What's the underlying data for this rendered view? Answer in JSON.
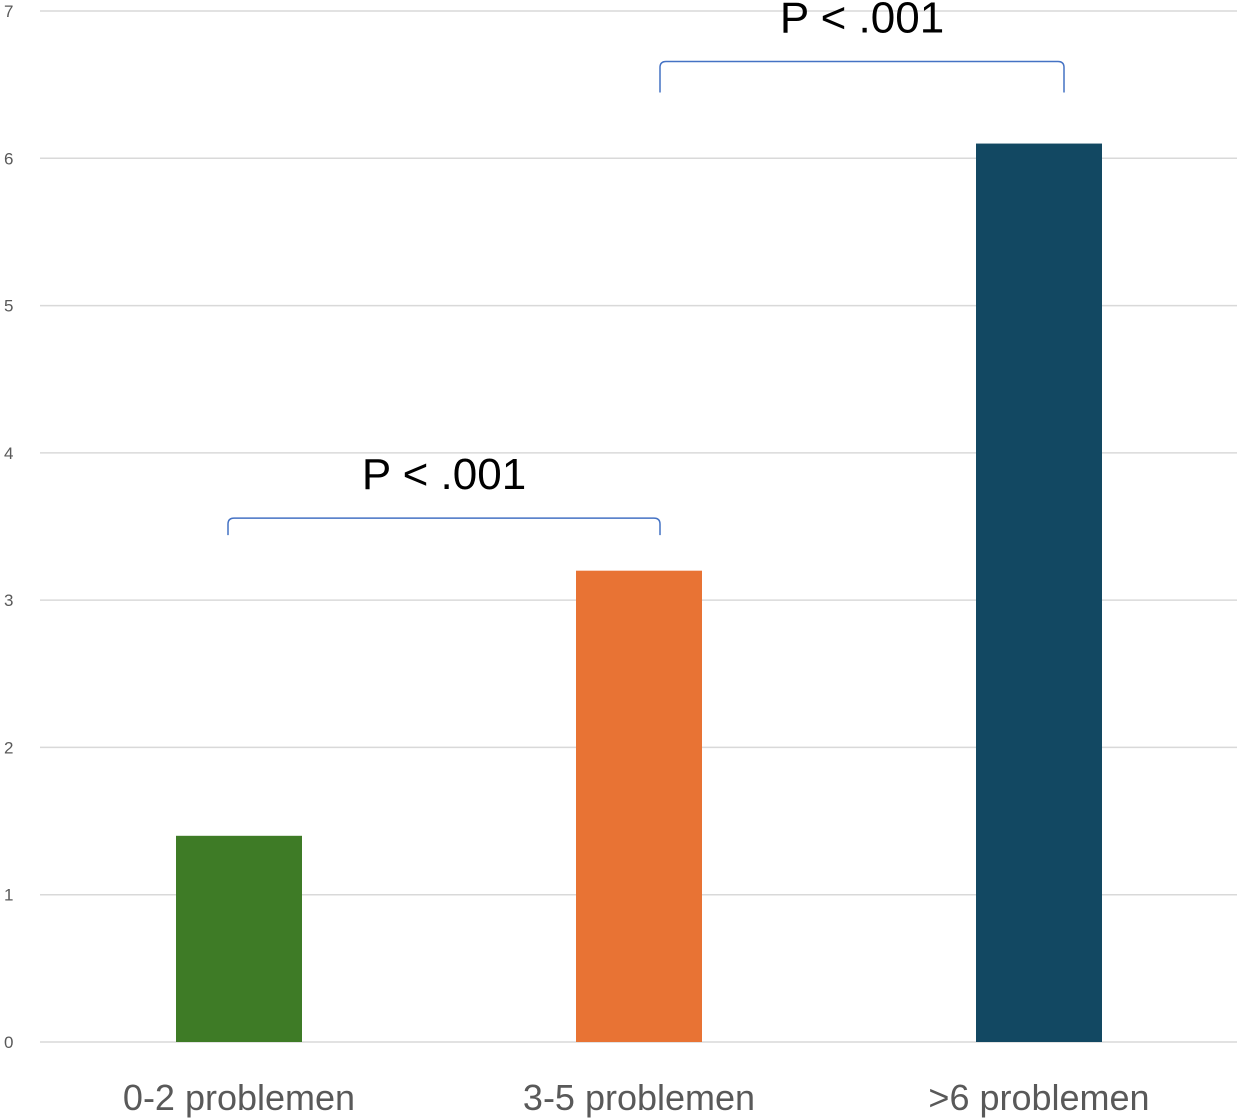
{
  "chart_data": {
    "type": "bar",
    "categories": [
      "0-2 problemen",
      "3-5 problemen",
      ">6 problemen"
    ],
    "values": [
      1.4,
      3.2,
      6.1
    ],
    "colors": [
      "#3e7b26",
      "#e87334",
      "#124862"
    ],
    "y_ticks": [
      "0",
      "1",
      "2",
      "3",
      "4",
      "5",
      "6",
      "7"
    ],
    "ylim": [
      0,
      7
    ],
    "grid": true,
    "annotations": [
      {
        "label": "P < .001",
        "from_category": 0,
        "to_category": 1,
        "y": 3.55
      },
      {
        "label": "P < .001",
        "from_category": 1,
        "to_category": 2,
        "y": 6.65
      }
    ]
  }
}
